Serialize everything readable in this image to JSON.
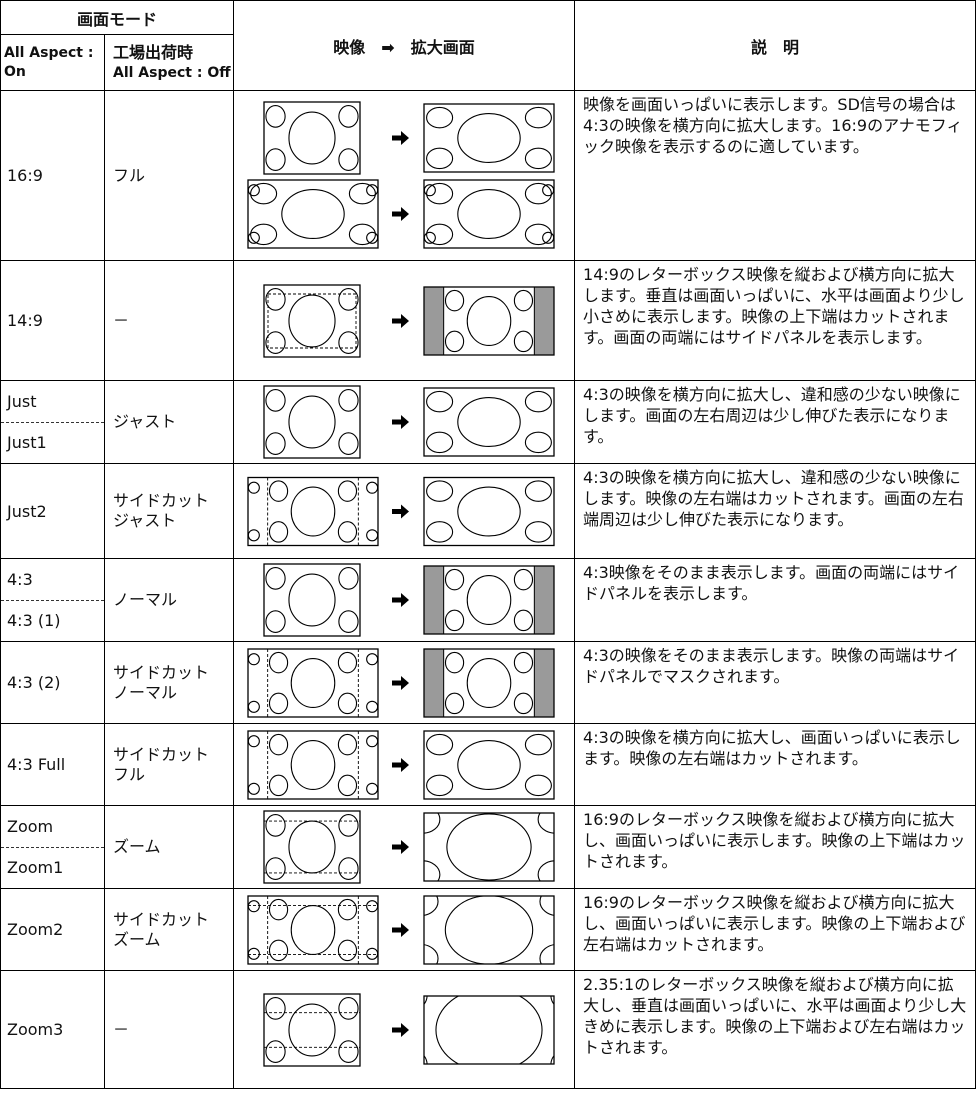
{
  "header": {
    "mode": "画面モード",
    "on": [
      "All Aspect :",
      "On"
    ],
    "off": [
      "工場出荷時",
      "All Aspect : Off"
    ],
    "image": "映像　➡　拡大画面",
    "desc": "説　明"
  },
  "rows": [
    {
      "modes": [
        "16:9"
      ],
      "factory": [
        "フル"
      ],
      "description": "映像を画面いっぱいに表示します。SD信号の場合は4:3の映像を横方向に拡大します。16:9のアナモフィック映像を表示するのに適しています。"
    },
    {
      "modes": [
        "14:9"
      ],
      "factory": [
        "－"
      ],
      "description": "14:9のレターボックス映像を縦および横方向に拡大します。垂直は画面いっぱいに、水平は画面より少し小さめに表示します。映像の上下端はカットされます。画面の両端にはサイドパネルを表示します。"
    },
    {
      "modes": [
        "Just",
        "Just1"
      ],
      "factory": [
        "ジャスト"
      ],
      "description": "4:3の映像を横方向に拡大し、違和感の少ない映像にします。画面の左右周辺は少し伸びた表示になります。"
    },
    {
      "modes": [
        "Just2"
      ],
      "factory": [
        "サイドカット",
        "ジャスト"
      ],
      "description": "4:3の映像を横方向に拡大し、違和感の少ない映像にします。映像の左右端はカットされます。画面の左右端周辺は少し伸びた表示になります。"
    },
    {
      "modes": [
        "4:3",
        "4:3 (1)"
      ],
      "factory": [
        "ノーマル"
      ],
      "description": "4:3映像をそのまま表示します。画面の両端にはサイドパネルを表示します。"
    },
    {
      "modes": [
        "4:3 (2)"
      ],
      "factory": [
        "サイドカット",
        "ノーマル"
      ],
      "description": "4:3の映像をそのまま表示します。映像の両端はサイドパネルでマスクされます。"
    },
    {
      "modes": [
        "4:3 Full"
      ],
      "factory": [
        "サイドカット",
        "フル"
      ],
      "description": "4:3の映像を横方向に拡大し、画面いっぱいに表示します。映像の左右端はカットされます。"
    },
    {
      "modes": [
        "Zoom",
        "Zoom1"
      ],
      "factory": [
        "ズーム"
      ],
      "description": "16:9のレターボックス映像を縦および横方向に拡大し、画面いっぱいに表示します。映像の上下端はカットされます。"
    },
    {
      "modes": [
        "Zoom2"
      ],
      "factory": [
        "サイドカット",
        "ズーム"
      ],
      "description": "16:9のレターボックス映像を縦および横方向に拡大し、画面いっぱいに表示します。映像の上下端および左右端はカットされます。"
    },
    {
      "modes": [
        "Zoom3"
      ],
      "factory": [
        "－"
      ],
      "description": "2.35:1のレターボックス映像を縦および横方向に拡大し、垂直は画面いっぱいに、水平は画面より少し大きめに表示します。映像の上下端および左右端はカットされます。"
    }
  ]
}
